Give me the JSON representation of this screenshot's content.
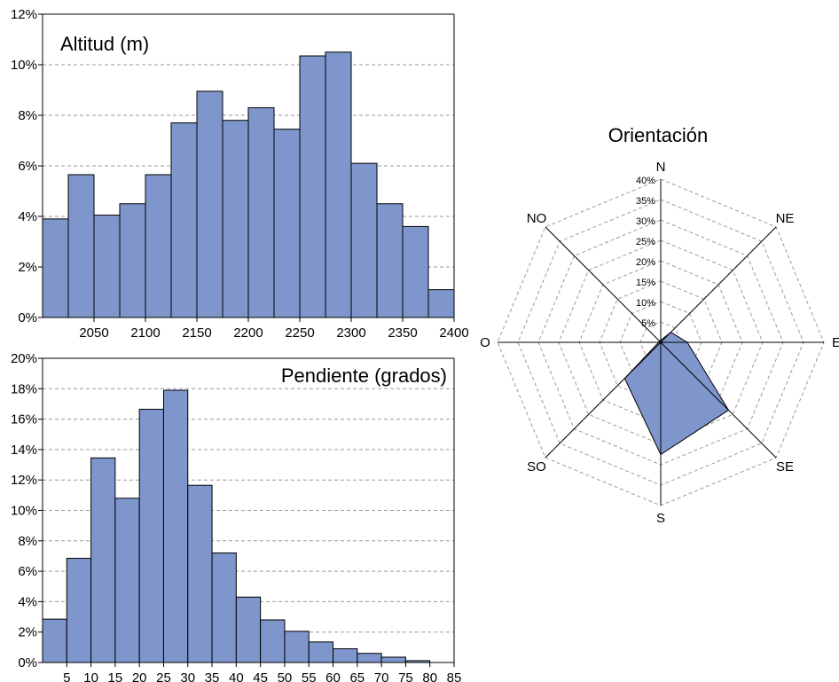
{
  "colors": {
    "bar_fill": "#7f96cc",
    "bar_stroke": "#000000",
    "grid": "#9a9a9a",
    "axis": "#000000"
  },
  "chart_data": [
    {
      "type": "bar",
      "title": "Altitud (m)",
      "categories": [
        "2000-2025",
        "2025-2050",
        "2050-2075",
        "2075-2100",
        "2100-2125",
        "2125-2150",
        "2150-2175",
        "2175-2200",
        "2200-2225",
        "2225-2250",
        "2250-2275",
        "2275-2300",
        "2300-2325",
        "2325-2350",
        "2350-2375",
        "2375-2400"
      ],
      "values": [
        3.9,
        5.65,
        4.05,
        4.5,
        5.65,
        7.7,
        8.95,
        7.8,
        8.3,
        7.45,
        10.35,
        10.5,
        6.1,
        4.5,
        3.6,
        1.1
      ],
      "bin_edges": [
        2000,
        2400
      ],
      "xticks": [
        "2050",
        "2100",
        "2150",
        "2200",
        "2250",
        "2300",
        "2350",
        "2400"
      ],
      "yticks": [
        "0%",
        "2%",
        "4%",
        "6%",
        "8%",
        "10%",
        "12%"
      ],
      "ylim": [
        0,
        12
      ],
      "grid": true,
      "xlabel": "",
      "ylabel": ""
    },
    {
      "type": "bar",
      "title": "Pendiente (grados)",
      "categories": [
        "0-5",
        "5-10",
        "10-15",
        "15-20",
        "20-25",
        "25-30",
        "30-35",
        "35-40",
        "40-45",
        "45-50",
        "50-55",
        "55-60",
        "60-65",
        "65-70",
        "70-75",
        "75-80"
      ],
      "values": [
        2.85,
        6.85,
        13.45,
        10.8,
        16.65,
        17.9,
        11.65,
        7.2,
        4.3,
        2.8,
        2.05,
        1.35,
        0.9,
        0.6,
        0.35,
        0.12
      ],
      "bin_edges": [
        0,
        85
      ],
      "xticks": [
        "5",
        "10",
        "15",
        "20",
        "25",
        "30",
        "35",
        "40",
        "45",
        "50",
        "55",
        "60",
        "65",
        "70",
        "75",
        "80",
        "85"
      ],
      "yticks": [
        "0%",
        "2%",
        "4%",
        "6%",
        "8%",
        "10%",
        "12%",
        "14%",
        "16%",
        "18%",
        "20%"
      ],
      "ylim": [
        0,
        20
      ],
      "grid": true,
      "xlabel": "",
      "ylabel": ""
    },
    {
      "type": "radar",
      "title": "Orientación",
      "axes": [
        "N",
        "NE",
        "E",
        "SE",
        "S",
        "SO",
        "O",
        "NO"
      ],
      "values": [
        0.5,
        3.5,
        6.5,
        23.5,
        27.5,
        12.5,
        0.5,
        0.5
      ],
      "rticks": [
        "5%",
        "10%",
        "15%",
        "20%",
        "25%",
        "30%",
        "35%",
        "40%"
      ],
      "rlim": [
        0,
        40
      ],
      "grid": true
    }
  ]
}
